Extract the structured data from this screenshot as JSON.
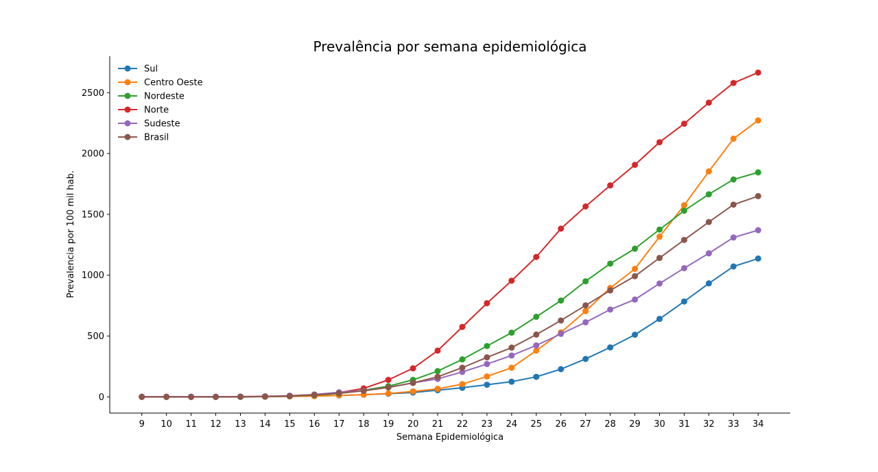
{
  "chart_data": {
    "type": "line",
    "title": "Prevalência por semana epidemiológica",
    "xlabel": "Semana Epidemiológica",
    "ylabel": "Prevalencia por 100 mil hab.",
    "x": [
      9,
      10,
      11,
      12,
      13,
      14,
      15,
      16,
      17,
      18,
      19,
      20,
      21,
      22,
      23,
      24,
      25,
      26,
      27,
      28,
      29,
      30,
      31,
      32,
      33,
      34
    ],
    "xlim": [
      7.7,
      35.3
    ],
    "ylim": [
      -133,
      2800
    ],
    "yticks": [
      0,
      500,
      1000,
      1500,
      2000,
      2500
    ],
    "grid": false,
    "legend_position": "top-left",
    "series": [
      {
        "name": "Sul",
        "color": "#1f77b4",
        "values": [
          0,
          0,
          0,
          0,
          1,
          2,
          4,
          6,
          12,
          18,
          26,
          36,
          55,
          75,
          100,
          125,
          165,
          228,
          312,
          407,
          511,
          641,
          784,
          933,
          1072,
          1137
        ]
      },
      {
        "name": "Centro Oeste",
        "color": "#ff7f0e",
        "values": [
          0,
          0,
          0,
          0,
          1,
          2,
          4,
          6,
          12,
          18,
          28,
          45,
          66,
          105,
          168,
          240,
          380,
          530,
          705,
          895,
          1052,
          1317,
          1575,
          1853,
          2122,
          2272
        ]
      },
      {
        "name": "Nordeste",
        "color": "#2ca02c",
        "values": [
          0,
          0,
          0,
          0,
          1,
          3,
          7,
          14,
          28,
          55,
          88,
          140,
          212,
          308,
          418,
          528,
          658,
          792,
          950,
          1095,
          1218,
          1375,
          1530,
          1665,
          1787,
          1845
        ]
      },
      {
        "name": "Norte",
        "color": "#d62728",
        "values": [
          0,
          0,
          0,
          0,
          1,
          3,
          8,
          18,
          35,
          70,
          140,
          235,
          380,
          575,
          770,
          955,
          1150,
          1383,
          1565,
          1738,
          1907,
          2093,
          2245,
          2418,
          2580,
          2665
        ]
      },
      {
        "name": "Sudeste",
        "color": "#9467bd",
        "values": [
          2,
          2,
          2,
          2,
          3,
          5,
          10,
          20,
          38,
          52,
          78,
          115,
          148,
          205,
          270,
          340,
          423,
          518,
          613,
          718,
          800,
          932,
          1058,
          1180,
          1310,
          1370
        ]
      },
      {
        "name": "Brasil",
        "color": "#8c564b",
        "values": [
          0,
          0,
          0,
          0,
          1,
          3,
          8,
          16,
          30,
          50,
          78,
          115,
          165,
          240,
          325,
          405,
          512,
          628,
          752,
          875,
          992,
          1142,
          1290,
          1437,
          1580,
          1650
        ]
      }
    ]
  }
}
